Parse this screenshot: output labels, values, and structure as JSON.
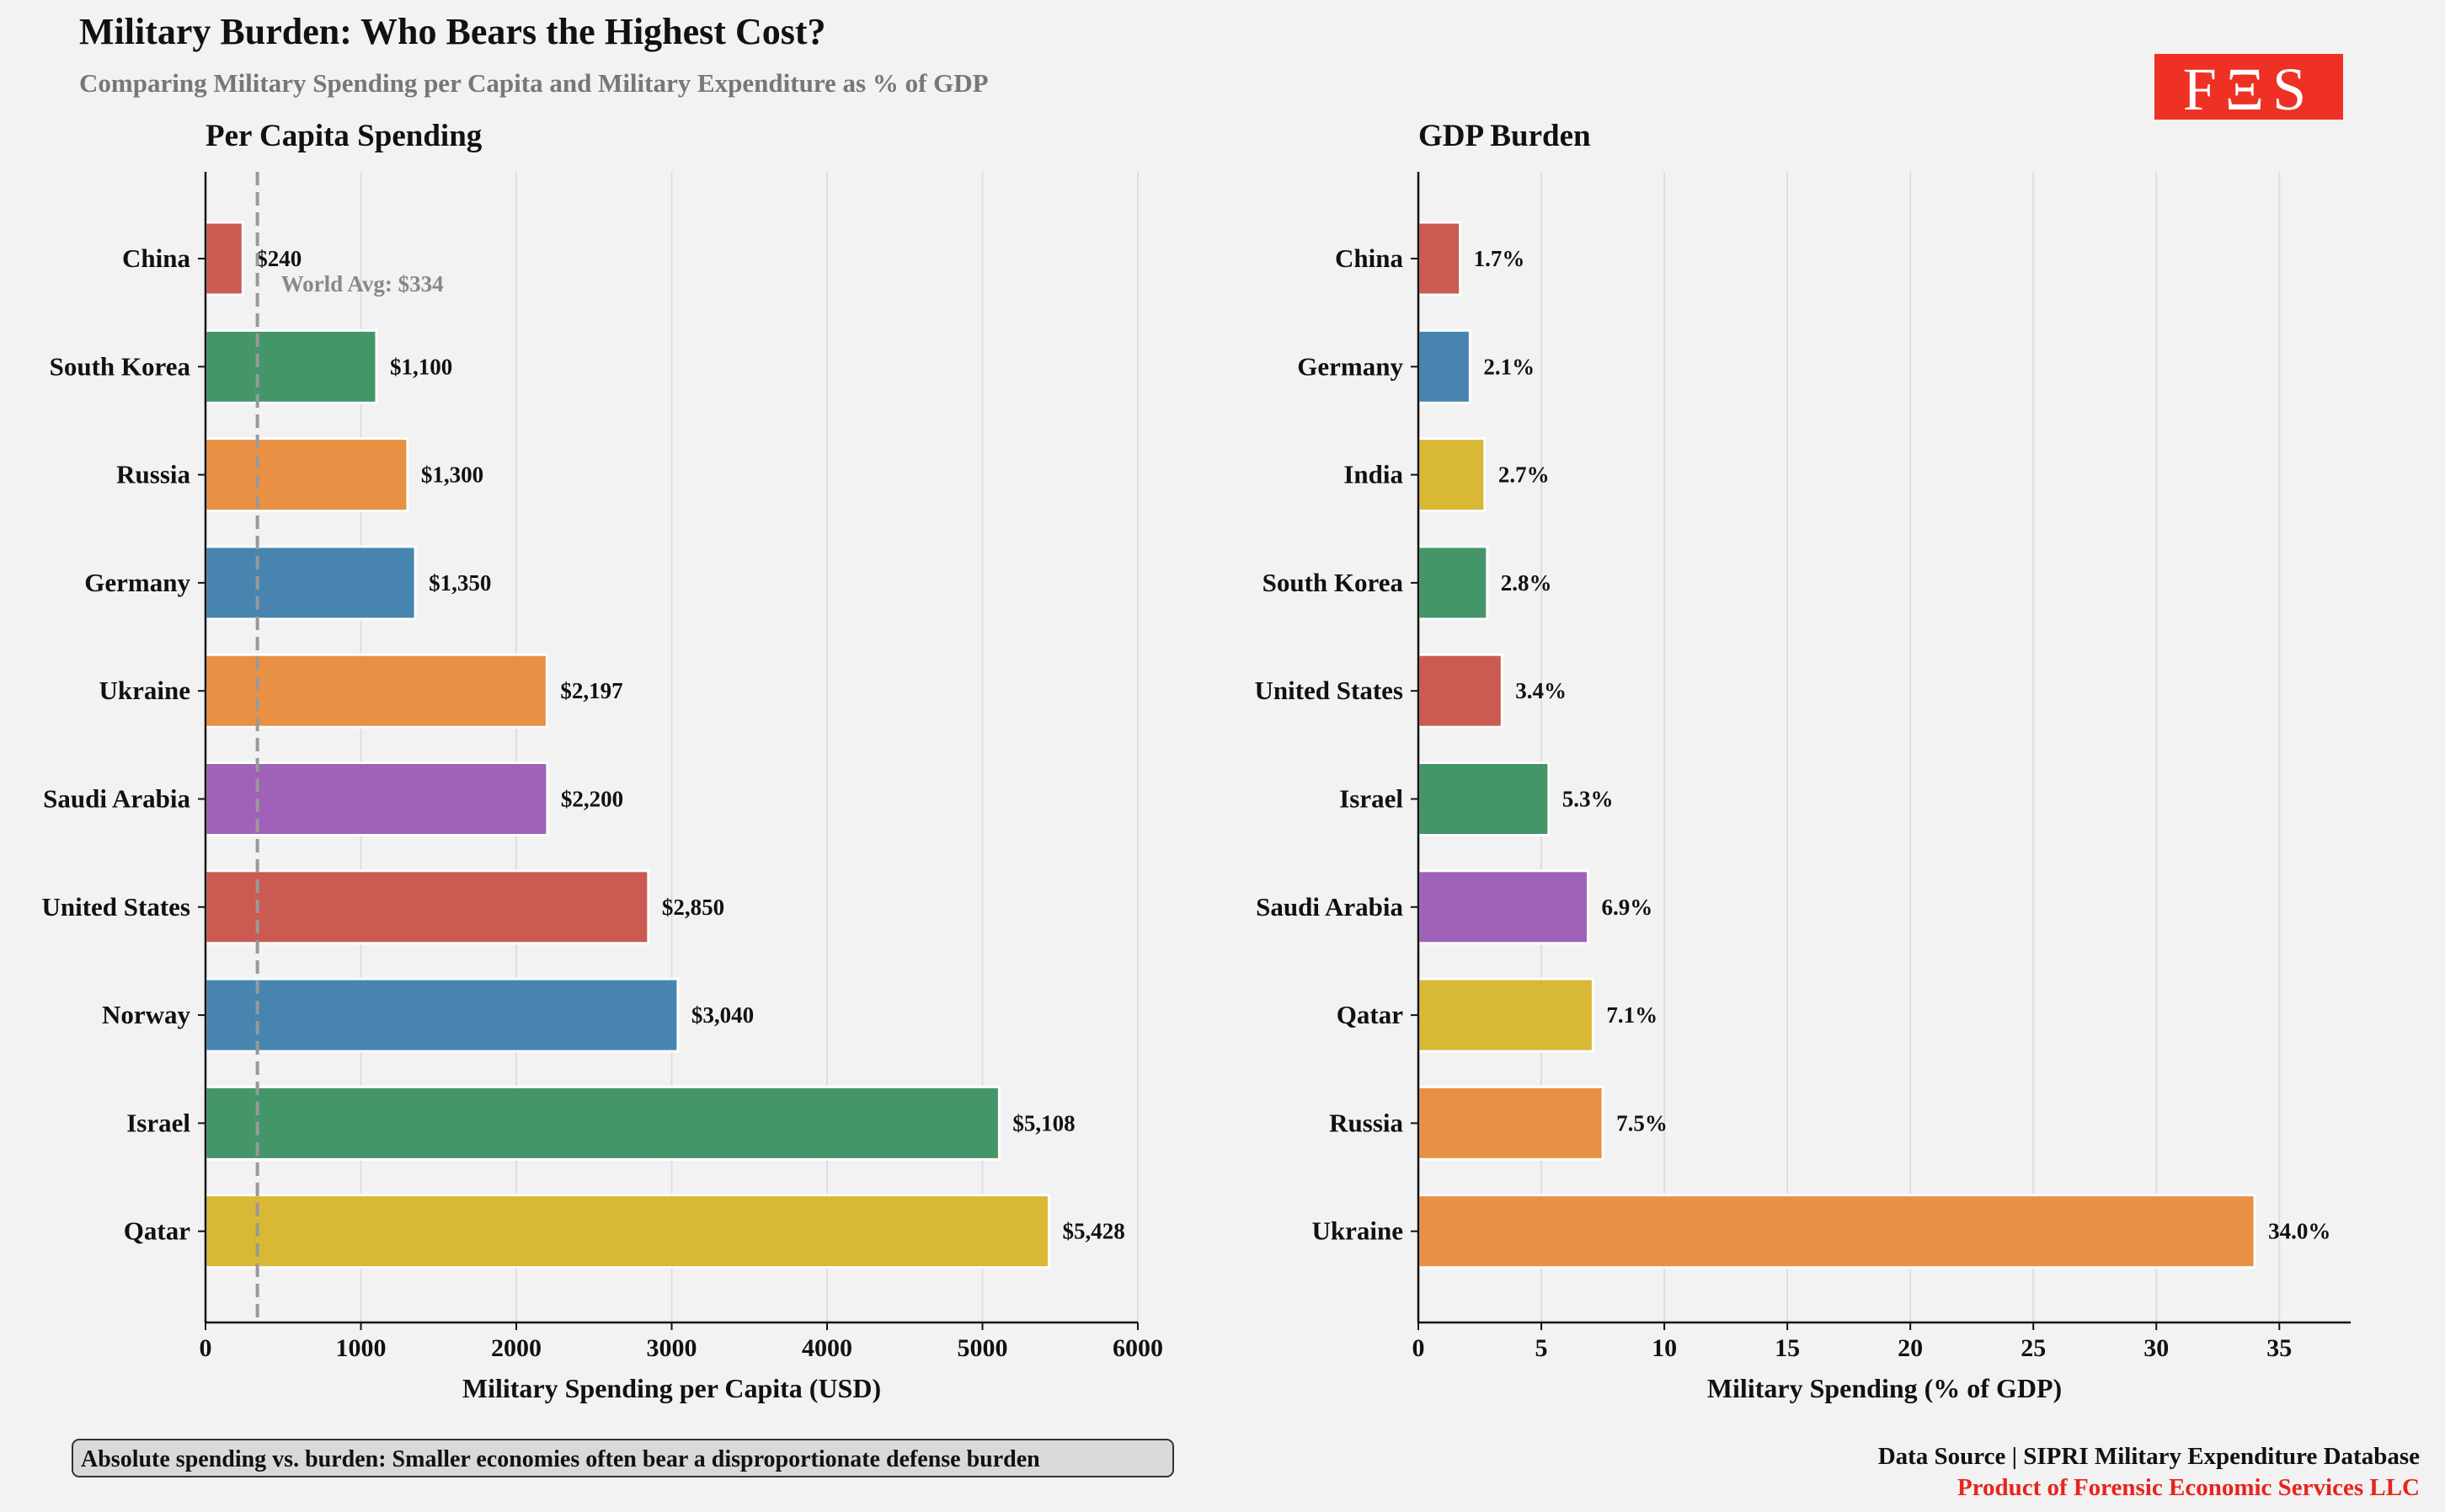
{
  "title": "Military Burden: Who Bears the Highest Cost?",
  "subtitle": "Comparing Military Spending per Capita and Military Expenditure as % of GDP",
  "logo": {
    "text": "FΞS",
    "color": "#ee3124"
  },
  "annotation": "Absolute spending vs. burden: Smaller economies often bear a disproportionate defense burden",
  "source": "Data Source | SIPRI Military Expenditure Database",
  "credit": "Product of Forensic Economic Services LLC",
  "colors": {
    "red": "#c9534a",
    "green": "#3b9262",
    "orange": "#e88b3a",
    "blue": "#3e80ad",
    "purple": "#9b5bb5",
    "yellow": "#d8b52c",
    "credit": "#e8241b"
  },
  "chart_data": [
    {
      "type": "bar",
      "orientation": "horizontal",
      "title": "Per Capita Spending",
      "xlabel": "Military Spending per Capita (USD)",
      "xlim": [
        0,
        6000
      ],
      "xticks": [
        0,
        1000,
        2000,
        3000,
        4000,
        5000,
        6000
      ],
      "grid": "vertical",
      "categories": [
        "China",
        "South Korea",
        "Russia",
        "Germany",
        "Ukraine",
        "Saudi Arabia",
        "United States",
        "Norway",
        "Israel",
        "Qatar"
      ],
      "values": [
        240,
        1100,
        1300,
        1350,
        2197,
        2200,
        2850,
        3040,
        5108,
        5428
      ],
      "labels": [
        "$240",
        "$1,100",
        "$1,300",
        "$1,350",
        "$2,197",
        "$2,200",
        "$2,850",
        "$3,040",
        "$5,108",
        "$5,428"
      ],
      "bar_colors": [
        "red",
        "green",
        "orange",
        "blue",
        "orange",
        "purple",
        "red",
        "blue",
        "green",
        "yellow"
      ],
      "reference_line": {
        "value": 334,
        "label": "World Avg: $334",
        "style": "dashed"
      }
    },
    {
      "type": "bar",
      "orientation": "horizontal",
      "title": "GDP Burden",
      "xlabel": "Military Spending (% of GDP)",
      "xlim": [
        0,
        37.9
      ],
      "xticks": [
        0,
        5,
        10,
        15,
        20,
        25,
        30,
        35
      ],
      "grid": "vertical",
      "categories": [
        "China",
        "Germany",
        "India",
        "South Korea",
        "United States",
        "Israel",
        "Saudi Arabia",
        "Qatar",
        "Russia",
        "Ukraine"
      ],
      "values": [
        1.7,
        2.1,
        2.7,
        2.8,
        3.4,
        5.3,
        6.9,
        7.1,
        7.5,
        34.0
      ],
      "labels": [
        "1.7%",
        "2.1%",
        "2.7%",
        "2.8%",
        "3.4%",
        "5.3%",
        "6.9%",
        "7.1%",
        "7.5%",
        "34.0%"
      ],
      "bar_colors": [
        "red",
        "blue",
        "yellow",
        "green",
        "red",
        "green",
        "purple",
        "yellow",
        "orange",
        "orange"
      ]
    }
  ]
}
